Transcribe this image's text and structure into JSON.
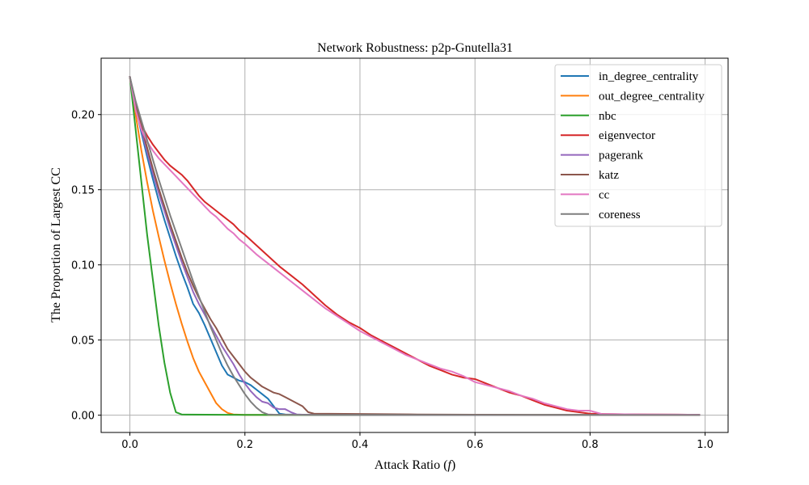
{
  "chart_data": {
    "type": "line",
    "title": "Network Robustness: p2p-Gnutella31",
    "xlabel": "Attack Ratio (",
    "xlabel_symbol": "f",
    "xlabel_close": ")",
    "ylabel": "The Proportion of Largest CC",
    "xlim": [
      -0.05,
      1.04
    ],
    "ylim": [
      -0.0115,
      0.2375
    ],
    "xticks": [
      0.0,
      0.2,
      0.4,
      0.6,
      0.8,
      1.0
    ],
    "xtick_labels": [
      "0.0",
      "0.2",
      "0.4",
      "0.6",
      "0.8",
      "1.0"
    ],
    "yticks": [
      0.0,
      0.05,
      0.1,
      0.15,
      0.2
    ],
    "ytick_labels": [
      "0.00",
      "0.05",
      "0.10",
      "0.15",
      "0.20"
    ],
    "grid": true,
    "legend_position": "top-right",
    "series": [
      {
        "name": "in_degree_centrality",
        "color": "#1f77b4",
        "x": [
          0.0,
          0.01,
          0.02,
          0.03,
          0.04,
          0.05,
          0.06,
          0.07,
          0.08,
          0.09,
          0.1,
          0.11,
          0.12,
          0.13,
          0.14,
          0.15,
          0.16,
          0.17,
          0.18,
          0.19,
          0.2,
          0.21,
          0.22,
          0.23,
          0.24,
          0.25,
          0.26,
          0.27,
          0.3,
          0.35,
          0.4,
          0.5,
          0.6,
          0.7,
          0.8,
          0.9,
          0.99
        ],
        "y": [
          0.225,
          0.205,
          0.188,
          0.172,
          0.157,
          0.143,
          0.13,
          0.118,
          0.106,
          0.095,
          0.085,
          0.074,
          0.068,
          0.06,
          0.051,
          0.042,
          0.033,
          0.027,
          0.025,
          0.023,
          0.022,
          0.02,
          0.017,
          0.014,
          0.011,
          0.006,
          0.001,
          0.0005,
          0.0003,
          0.0002,
          0.0002,
          0.0001,
          0.0001,
          0.0001,
          0.0001,
          0.0001,
          0.0001
        ]
      },
      {
        "name": "out_degree_centrality",
        "color": "#ff7f0e",
        "x": [
          0.0,
          0.01,
          0.02,
          0.03,
          0.04,
          0.05,
          0.06,
          0.07,
          0.08,
          0.09,
          0.1,
          0.11,
          0.12,
          0.13,
          0.14,
          0.15,
          0.16,
          0.17,
          0.18,
          0.2,
          0.3,
          0.4,
          0.5,
          0.6,
          0.7,
          0.8,
          0.9,
          0.99
        ],
        "y": [
          0.225,
          0.2,
          0.176,
          0.155,
          0.136,
          0.119,
          0.103,
          0.088,
          0.074,
          0.061,
          0.049,
          0.038,
          0.029,
          0.022,
          0.015,
          0.008,
          0.004,
          0.0015,
          0.0005,
          0.0002,
          0.0002,
          0.0001,
          0.0001,
          0.0001,
          0.0001,
          0.0001,
          0.0001,
          0.0001
        ]
      },
      {
        "name": "nbc",
        "color": "#2ca02c",
        "x": [
          0.0,
          0.01,
          0.02,
          0.03,
          0.04,
          0.05,
          0.06,
          0.07,
          0.08,
          0.09,
          0.1,
          0.2,
          0.3,
          0.4,
          0.5,
          0.6,
          0.7,
          0.8,
          0.9,
          0.99
        ],
        "y": [
          0.225,
          0.19,
          0.155,
          0.12,
          0.09,
          0.06,
          0.035,
          0.015,
          0.002,
          0.0005,
          0.0004,
          0.0002,
          0.0001,
          0.0001,
          0.0001,
          0.0001,
          0.0001,
          0.0001,
          0.0001,
          0.0001
        ]
      },
      {
        "name": "eigenvector",
        "color": "#d62728",
        "x": [
          0.0,
          0.01,
          0.02,
          0.03,
          0.04,
          0.05,
          0.06,
          0.07,
          0.08,
          0.09,
          0.1,
          0.11,
          0.12,
          0.13,
          0.14,
          0.15,
          0.16,
          0.17,
          0.18,
          0.19,
          0.2,
          0.22,
          0.24,
          0.26,
          0.28,
          0.3,
          0.32,
          0.34,
          0.36,
          0.38,
          0.4,
          0.42,
          0.44,
          0.46,
          0.48,
          0.5,
          0.52,
          0.54,
          0.56,
          0.58,
          0.6,
          0.62,
          0.64,
          0.66,
          0.68,
          0.7,
          0.72,
          0.74,
          0.76,
          0.78,
          0.8,
          0.82,
          0.86,
          0.9,
          0.95,
          0.99
        ],
        "y": [
          0.225,
          0.205,
          0.193,
          0.186,
          0.18,
          0.175,
          0.17,
          0.166,
          0.163,
          0.16,
          0.156,
          0.151,
          0.146,
          0.142,
          0.139,
          0.136,
          0.133,
          0.13,
          0.127,
          0.123,
          0.12,
          0.113,
          0.106,
          0.099,
          0.093,
          0.087,
          0.08,
          0.073,
          0.067,
          0.062,
          0.058,
          0.053,
          0.049,
          0.045,
          0.041,
          0.037,
          0.033,
          0.03,
          0.027,
          0.025,
          0.024,
          0.021,
          0.018,
          0.015,
          0.013,
          0.01,
          0.007,
          0.005,
          0.003,
          0.002,
          0.001,
          0.0008,
          0.0006,
          0.0005,
          0.0004,
          0.0003
        ]
      },
      {
        "name": "pagerank",
        "color": "#9467bd",
        "x": [
          0.0,
          0.01,
          0.02,
          0.03,
          0.04,
          0.05,
          0.06,
          0.07,
          0.08,
          0.09,
          0.1,
          0.11,
          0.12,
          0.13,
          0.14,
          0.15,
          0.16,
          0.17,
          0.18,
          0.19,
          0.2,
          0.21,
          0.22,
          0.23,
          0.24,
          0.25,
          0.26,
          0.27,
          0.28,
          0.29,
          0.3,
          0.4,
          0.5,
          0.6,
          0.7,
          0.8,
          0.9,
          0.99
        ],
        "y": [
          0.225,
          0.206,
          0.19,
          0.175,
          0.161,
          0.148,
          0.136,
          0.124,
          0.113,
          0.102,
          0.092,
          0.082,
          0.074,
          0.067,
          0.06,
          0.053,
          0.046,
          0.04,
          0.034,
          0.027,
          0.021,
          0.016,
          0.012,
          0.009,
          0.008,
          0.005,
          0.004,
          0.004,
          0.002,
          0.0005,
          0.0003,
          0.0002,
          0.0001,
          0.0001,
          0.0001,
          0.0001,
          0.0001,
          0.0001
        ]
      },
      {
        "name": "katz",
        "color": "#8c564b",
        "x": [
          0.0,
          0.01,
          0.02,
          0.03,
          0.04,
          0.05,
          0.06,
          0.07,
          0.08,
          0.09,
          0.1,
          0.11,
          0.12,
          0.13,
          0.14,
          0.15,
          0.16,
          0.17,
          0.18,
          0.19,
          0.2,
          0.21,
          0.22,
          0.23,
          0.24,
          0.25,
          0.26,
          0.27,
          0.28,
          0.29,
          0.3,
          0.31,
          0.32,
          0.4,
          0.5,
          0.6,
          0.7,
          0.8,
          0.9,
          0.99
        ],
        "y": [
          0.225,
          0.207,
          0.192,
          0.178,
          0.164,
          0.151,
          0.139,
          0.127,
          0.116,
          0.105,
          0.095,
          0.086,
          0.078,
          0.071,
          0.064,
          0.058,
          0.051,
          0.044,
          0.039,
          0.034,
          0.029,
          0.025,
          0.022,
          0.019,
          0.017,
          0.015,
          0.014,
          0.012,
          0.01,
          0.008,
          0.006,
          0.002,
          0.001,
          0.0008,
          0.0005,
          0.0003,
          0.0002,
          0.0002,
          0.0001,
          0.0001
        ]
      },
      {
        "name": "cc",
        "color": "#e377c2",
        "x": [
          0.0,
          0.01,
          0.02,
          0.03,
          0.04,
          0.05,
          0.06,
          0.07,
          0.08,
          0.09,
          0.1,
          0.11,
          0.12,
          0.13,
          0.14,
          0.15,
          0.16,
          0.17,
          0.18,
          0.19,
          0.2,
          0.22,
          0.24,
          0.26,
          0.28,
          0.3,
          0.32,
          0.34,
          0.36,
          0.38,
          0.4,
          0.42,
          0.44,
          0.46,
          0.48,
          0.5,
          0.52,
          0.54,
          0.56,
          0.58,
          0.6,
          0.62,
          0.64,
          0.66,
          0.68,
          0.7,
          0.72,
          0.74,
          0.76,
          0.78,
          0.8,
          0.82,
          0.86,
          0.9,
          0.95,
          0.99
        ],
        "y": [
          0.225,
          0.203,
          0.19,
          0.182,
          0.176,
          0.171,
          0.167,
          0.163,
          0.159,
          0.155,
          0.151,
          0.147,
          0.143,
          0.139,
          0.135,
          0.132,
          0.128,
          0.124,
          0.121,
          0.117,
          0.114,
          0.107,
          0.101,
          0.095,
          0.089,
          0.083,
          0.077,
          0.071,
          0.066,
          0.061,
          0.056,
          0.052,
          0.048,
          0.044,
          0.04,
          0.037,
          0.034,
          0.031,
          0.029,
          0.026,
          0.022,
          0.02,
          0.018,
          0.016,
          0.013,
          0.011,
          0.008,
          0.006,
          0.004,
          0.003,
          0.003,
          0.0008,
          0.0006,
          0.0005,
          0.0004,
          0.0003
        ]
      },
      {
        "name": "coreness",
        "color": "#7f7f7f",
        "x": [
          0.0,
          0.01,
          0.02,
          0.03,
          0.04,
          0.05,
          0.06,
          0.07,
          0.08,
          0.09,
          0.1,
          0.11,
          0.12,
          0.13,
          0.14,
          0.15,
          0.16,
          0.17,
          0.18,
          0.19,
          0.2,
          0.21,
          0.22,
          0.23,
          0.24,
          0.25,
          0.3,
          0.4,
          0.5,
          0.6,
          0.7,
          0.8,
          0.9,
          0.99
        ],
        "y": [
          0.225,
          0.209,
          0.196,
          0.183,
          0.17,
          0.157,
          0.145,
          0.133,
          0.122,
          0.111,
          0.1,
          0.089,
          0.079,
          0.069,
          0.059,
          0.05,
          0.041,
          0.033,
          0.026,
          0.02,
          0.014,
          0.009,
          0.005,
          0.002,
          0.0005,
          0.0003,
          0.0002,
          0.0002,
          0.0001,
          0.0001,
          0.0001,
          0.0001,
          0.0001,
          0.0001
        ]
      }
    ]
  }
}
